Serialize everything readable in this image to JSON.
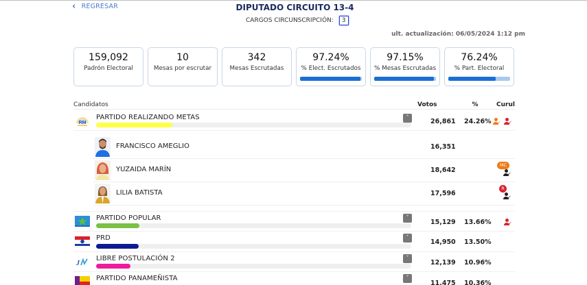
{
  "nav": {
    "back_label": "REGRESAR",
    "back_icon": "chevron-left-icon"
  },
  "header": {
    "title": "DIPUTADO CIRCUITO 13-4",
    "cargos_label": "CARGOS CIRCUNSCRIPCIÓN:",
    "cargos_value": "3",
    "updated": "ult. actualización: 06/05/2024 1:12 pm"
  },
  "stats": [
    {
      "value": "159,092",
      "label": "Padrón Electoral"
    },
    {
      "value": "10",
      "label": "Mesas por escrutar"
    },
    {
      "value": "342",
      "label": "Mesas Escrutadas"
    },
    {
      "value": "97.24%",
      "label": "% Elect. Escrutados",
      "bar": 97.24
    },
    {
      "value": "97.15%",
      "label": "% Mesas Escrutadas",
      "bar": 97.15
    },
    {
      "value": "76.24%",
      "label": "% Part. Electoral",
      "bar": 76.24
    }
  ],
  "table": {
    "headers": {
      "candidates": "Candidatos",
      "votes": "Votos",
      "pct": "%",
      "curul": "Curul"
    },
    "parties": [
      {
        "name": "PARTIDO REALIZANDO METAS",
        "logo": "rm-logo",
        "color": "#ffff44",
        "bar": 24.26,
        "votes": "26,861",
        "pct": "24.26%",
        "expanded": true,
        "curul_icons": [
          "#f07b16",
          "#d8232f"
        ],
        "candidates": [
          {
            "name": "FRANCISCO AMEGLIO",
            "votes": "16,351",
            "photo": "male-blue-shirt"
          },
          {
            "name": "YUZAIDA MARÍN",
            "votes": "18,642",
            "photo": "female-red-hair",
            "badge": "MC",
            "badge_color": "#f07b16"
          },
          {
            "name": "LILIA BATISTA",
            "votes": "17,596",
            "photo": "female-yellow-jacket",
            "badge": "R",
            "badge_color": "#d8232f"
          }
        ]
      },
      {
        "name": "PARTIDO POPULAR",
        "logo": "pp-logo",
        "color": "#7ac143",
        "bar": 13.66,
        "votes": "15,129",
        "pct": "13.66%",
        "expanded": false,
        "curul_icons": [
          "#d8232f"
        ]
      },
      {
        "name": "PRD",
        "logo": "prd-logo",
        "color": "#0b1b8f",
        "bar": 13.5,
        "votes": "14,950",
        "pct": "13.50%",
        "expanded": false,
        "curul_icons": []
      },
      {
        "name": "LIBRE POSTULACIÓN 2",
        "logo": "lp2-logo",
        "color": "#ee1b9c",
        "bar": 10.96,
        "votes": "12,139",
        "pct": "10.96%",
        "expanded": false,
        "curul_icons": []
      },
      {
        "name": "PARTIDO PANAMEÑISTA",
        "logo": "panamenista-logo",
        "color": "#6e1f8a",
        "bar": 10.36,
        "votes": "11,475",
        "pct": "10.36%",
        "expanded": false,
        "curul_icons": []
      }
    ]
  }
}
